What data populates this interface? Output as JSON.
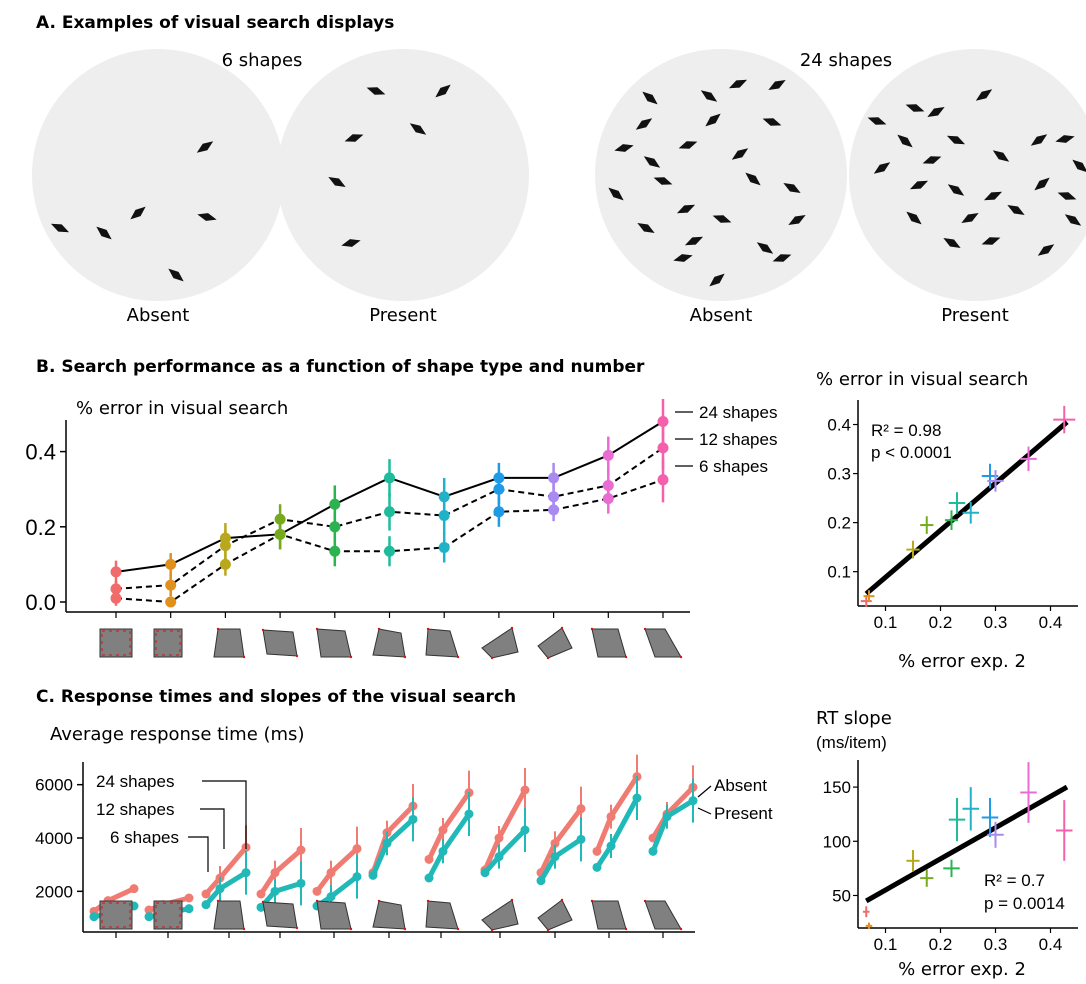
{
  "section_a": {
    "title": "A. Examples of visual search displays",
    "set_labels": [
      "6 shapes",
      "24 shapes"
    ],
    "display_labels": [
      "Absent",
      "Present",
      "Absent",
      "Present"
    ]
  },
  "section_b": {
    "title": "B. Search performance as a function of shape type and number",
    "main_ylabel": "% error in visual search",
    "right_ylabel": "% error in visual search",
    "right_xlabel": "% error exp. 2",
    "stats": [
      "R² = 0.98",
      "p < 0.0001"
    ],
    "line_labels": [
      "24 shapes",
      "12 shapes",
      "6 shapes"
    ]
  },
  "section_c": {
    "title": "C. Response times and slopes of the visual search",
    "main_ylabel": "Average response time (ms)",
    "right_ylabel_lines": [
      "RT slope",
      "(ms/item)"
    ],
    "right_xlabel": "% error exp. 2",
    "stats": [
      "R² = 0.7",
      "p = 0.0014"
    ],
    "shape_labels": [
      "24 shapes",
      "12 shapes",
      "6 shapes"
    ],
    "condition_labels": [
      "Absent",
      "Present"
    ]
  },
  "colors": {
    "shape_colors": [
      "#f06b6b",
      "#e0901c",
      "#b9a81e",
      "#76aa1e",
      "#2bb34f",
      "#1ebc9c",
      "#21b2c9",
      "#1e9be6",
      "#a98af0",
      "#e86cd2",
      "#f560ad"
    ],
    "absent": "#f07b72",
    "present": "#21b8b8",
    "display_bg": "#eeeeee",
    "shape_icon": "#808080"
  },
  "chart_data": [
    {
      "type": "line",
      "panel": "B-main",
      "ylabel": "% error in visual search",
      "ylim": [
        0,
        0.5
      ],
      "yticks": [
        0.0,
        0.2,
        0.4
      ],
      "yticklabels": [
        "0.0",
        "0.2",
        "0.4"
      ],
      "categories": [
        "shape 1",
        "shape 2",
        "shape 3",
        "shape 4",
        "shape 5",
        "shape 6",
        "shape 7",
        "shape 8",
        "shape 9",
        "shape 10",
        "shape 11"
      ],
      "series": [
        {
          "name": "24 shapes",
          "style": "solid",
          "values": [
            0.08,
            0.1,
            0.17,
            0.18,
            0.26,
            0.33,
            0.28,
            0.33,
            0.33,
            0.39,
            0.48
          ],
          "errors": [
            0.03,
            0.03,
            0.04,
            0.04,
            0.05,
            0.05,
            0.05,
            0.04,
            0.04,
            0.05,
            0.06
          ]
        },
        {
          "name": "12 shapes",
          "style": "dashed",
          "values": [
            0.035,
            0.045,
            0.15,
            0.22,
            0.2,
            0.24,
            0.23,
            0.3,
            0.28,
            0.31,
            0.41
          ],
          "errors": [
            0.02,
            0.03,
            0.04,
            0.04,
            0.04,
            0.05,
            0.05,
            0.04,
            0.04,
            0.05,
            0.06
          ]
        },
        {
          "name": "6 shapes",
          "style": "dashed",
          "values": [
            0.01,
            0.0,
            0.1,
            0.18,
            0.135,
            0.135,
            0.145,
            0.24,
            0.245,
            0.275,
            0.325
          ],
          "errors": [
            0.02,
            0.01,
            0.03,
            0.04,
            0.04,
            0.04,
            0.04,
            0.04,
            0.03,
            0.04,
            0.06
          ]
        }
      ]
    },
    {
      "type": "scatter",
      "panel": "B-right",
      "xlabel": "% error exp. 2",
      "ylabel": "% error in visual search",
      "xlim": [
        0.05,
        0.45
      ],
      "ylim": [
        0.03,
        0.45
      ],
      "xticks": [
        0.1,
        0.2,
        0.3,
        0.4
      ],
      "xticklabels": [
        "0.1",
        "0.2",
        "0.3",
        "0.4"
      ],
      "yticks": [
        0.1,
        0.2,
        0.3,
        0.4
      ],
      "yticklabels": [
        "0.1",
        "0.2",
        "0.3",
        "0.4"
      ],
      "x": [
        0.065,
        0.07,
        0.15,
        0.175,
        0.22,
        0.23,
        0.255,
        0.29,
        0.3,
        0.36,
        0.425
      ],
      "y": [
        0.04,
        0.05,
        0.145,
        0.195,
        0.205,
        0.24,
        0.22,
        0.295,
        0.285,
        0.33,
        0.41
      ],
      "xerr": [
        0.01,
        0.01,
        0.012,
        0.012,
        0.012,
        0.015,
        0.015,
        0.015,
        0.015,
        0.015,
        0.02
      ],
      "yerr": [
        0.012,
        0.012,
        0.018,
        0.018,
        0.02,
        0.022,
        0.022,
        0.025,
        0.022,
        0.025,
        0.028
      ],
      "fit": {
        "x": [
          0.065,
          0.43
        ],
        "y": [
          0.055,
          0.405
        ]
      },
      "annotations": [
        "R² = 0.98",
        "p < 0.0001"
      ]
    },
    {
      "type": "line",
      "panel": "C-main",
      "ylabel": "Average response time (ms)",
      "ylim": [
        700,
        7000
      ],
      "yticks": [
        2000,
        4000,
        6000
      ],
      "yticklabels": [
        "2000",
        "4000",
        "6000"
      ],
      "set_sizes": [
        6,
        12,
        24
      ],
      "series": [
        {
          "name": "Absent",
          "values": [
            [
              1250,
              1650,
              2100
            ],
            [
              1300,
              1500,
              1750
            ],
            [
              1900,
              2500,
              3650
            ],
            [
              1900,
              2700,
              3550
            ],
            [
              2000,
              2700,
              3600
            ],
            [
              2700,
              4200,
              5200
            ],
            [
              3200,
              4300,
              5700
            ],
            [
              2800,
              4000,
              5800
            ],
            [
              2700,
              3800,
              5100
            ],
            [
              3500,
              4800,
              6300
            ],
            [
              4000,
              4900,
              5900
            ]
          ]
        },
        {
          "name": "Present",
          "values": [
            [
              1050,
              1150,
              1450
            ],
            [
              1050,
              1150,
              1350
            ],
            [
              1500,
              2100,
              2700
            ],
            [
              1400,
              2000,
              2300
            ],
            [
              1450,
              1800,
              2550
            ],
            [
              2600,
              3800,
              4700
            ],
            [
              2500,
              3500,
              4900
            ],
            [
              2700,
              3300,
              4300
            ],
            [
              2400,
              3300,
              3950
            ],
            [
              2900,
              3700,
              5500
            ],
            [
              3500,
              4800,
              5400
            ]
          ]
        }
      ],
      "annotations": [
        "24 shapes",
        "12 shapes",
        "6 shapes",
        "Absent",
        "Present"
      ]
    },
    {
      "type": "scatter",
      "panel": "C-right",
      "xlabel": "% error exp. 2",
      "ylabel": "RT slope (ms/item)",
      "xlim": [
        0.05,
        0.45
      ],
      "ylim": [
        20,
        175
      ],
      "xticks": [
        0.1,
        0.2,
        0.3,
        0.4
      ],
      "xticklabels": [
        "0.1",
        "0.2",
        "0.3",
        "0.4"
      ],
      "yticks": [
        50,
        100,
        150
      ],
      "yticklabels": [
        "50",
        "100",
        "150"
      ],
      "x": [
        0.065,
        0.07,
        0.15,
        0.175,
        0.22,
        0.23,
        0.255,
        0.29,
        0.3,
        0.36,
        0.425
      ],
      "y": [
        35,
        22,
        82,
        66,
        75,
        120,
        130,
        122,
        106,
        145,
        110
      ],
      "xerr": [
        0.006,
        0.006,
        0.012,
        0.012,
        0.015,
        0.015,
        0.015,
        0.015,
        0.015,
        0.015,
        0.015
      ],
      "yerr": [
        5,
        3,
        10,
        8,
        8,
        20,
        20,
        18,
        12,
        28,
        28
      ],
      "fit": {
        "x": [
          0.065,
          0.43
        ],
        "y": [
          45,
          150
        ]
      },
      "annotations": [
        "R² = 0.7",
        "p = 0.0014"
      ]
    }
  ]
}
